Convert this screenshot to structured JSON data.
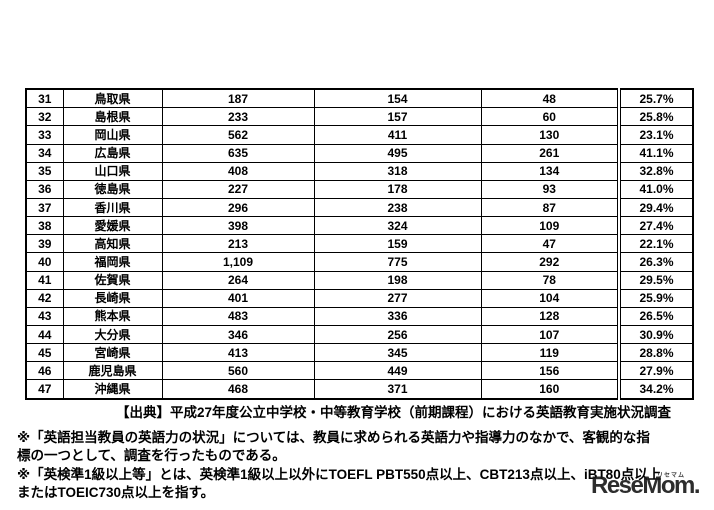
{
  "table": {
    "columns": [
      "row_no",
      "prefecture",
      "teachers_total",
      "value2",
      "value3",
      "percent"
    ],
    "rows": [
      {
        "no": "31",
        "prefecture": "鳥取県",
        "v1": "187",
        "v2": "154",
        "v3": "48",
        "pct": "25.7%"
      },
      {
        "no": "32",
        "prefecture": "島根県",
        "v1": "233",
        "v2": "157",
        "v3": "60",
        "pct": "25.8%"
      },
      {
        "no": "33",
        "prefecture": "岡山県",
        "v1": "562",
        "v2": "411",
        "v3": "130",
        "pct": "23.1%"
      },
      {
        "no": "34",
        "prefecture": "広島県",
        "v1": "635",
        "v2": "495",
        "v3": "261",
        "pct": "41.1%"
      },
      {
        "no": "35",
        "prefecture": "山口県",
        "v1": "408",
        "v2": "318",
        "v3": "134",
        "pct": "32.8%"
      },
      {
        "no": "36",
        "prefecture": "徳島県",
        "v1": "227",
        "v2": "178",
        "v3": "93",
        "pct": "41.0%"
      },
      {
        "no": "37",
        "prefecture": "香川県",
        "v1": "296",
        "v2": "238",
        "v3": "87",
        "pct": "29.4%"
      },
      {
        "no": "38",
        "prefecture": "愛媛県",
        "v1": "398",
        "v2": "324",
        "v3": "109",
        "pct": "27.4%"
      },
      {
        "no": "39",
        "prefecture": "高知県",
        "v1": "213",
        "v2": "159",
        "v3": "47",
        "pct": "22.1%"
      },
      {
        "no": "40",
        "prefecture": "福岡県",
        "v1": "1,109",
        "v2": "775",
        "v3": "292",
        "pct": "26.3%"
      },
      {
        "no": "41",
        "prefecture": "佐賀県",
        "v1": "264",
        "v2": "198",
        "v3": "78",
        "pct": "29.5%"
      },
      {
        "no": "42",
        "prefecture": "長崎県",
        "v1": "401",
        "v2": "277",
        "v3": "104",
        "pct": "25.9%"
      },
      {
        "no": "43",
        "prefecture": "熊本県",
        "v1": "483",
        "v2": "336",
        "v3": "128",
        "pct": "26.5%"
      },
      {
        "no": "44",
        "prefecture": "大分県",
        "v1": "346",
        "v2": "256",
        "v3": "107",
        "pct": "30.9%"
      },
      {
        "no": "45",
        "prefecture": "宮崎県",
        "v1": "413",
        "v2": "345",
        "v3": "119",
        "pct": "28.8%"
      },
      {
        "no": "46",
        "prefecture": "鹿児島県",
        "v1": "560",
        "v2": "449",
        "v3": "156",
        "pct": "27.9%"
      },
      {
        "no": "47",
        "prefecture": "沖縄県",
        "v1": "468",
        "v2": "371",
        "v3": "160",
        "pct": "34.2%"
      }
    ]
  },
  "source_line": "【出典】平成27年度公立中学校・中等教育学校（前期課程）における英語教育実施状況調査",
  "notes": {
    "note1_lines": [
      "※「英語担当教員の英語力の状況」については、教員に求められる英語力や指導力のなかで、客観的な指",
      "標の一つとして、調査を行ったものである。"
    ],
    "note2_lines": [
      "※「英検準1級以上等」とは、英検準1級以上以外にTOEFL PBT550点以上、CBT213点以上、iBT80点以上",
      "またはTOEIC730点以上を指す。"
    ]
  },
  "watermark": {
    "text": "ReseMom.",
    "ruby": "リセマム"
  },
  "colors": {
    "background": "#ffffff",
    "text": "#000000",
    "border": "#000000",
    "watermark": "#161616"
  }
}
